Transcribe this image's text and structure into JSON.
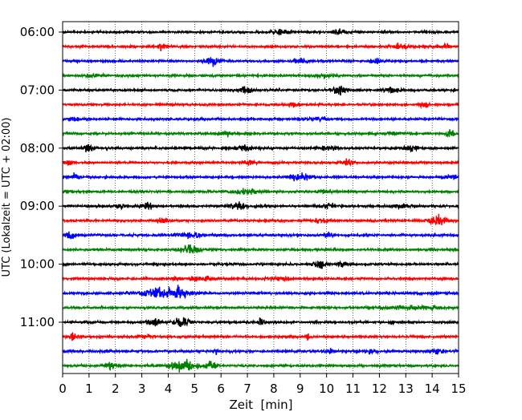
{
  "chart_data": {
    "type": "line",
    "title": "",
    "xlabel": "Zeit  [min]",
    "ylabel": "UTC (Lokalzeit = UTC + 02:00)",
    "xlim": [
      0,
      15
    ],
    "x_ticks": [
      0,
      1,
      2,
      3,
      4,
      5,
      6,
      7,
      8,
      9,
      10,
      11,
      12,
      13,
      14,
      15
    ],
    "y_tick_labels": [
      "06:00",
      "07:00",
      "08:00",
      "09:00",
      "10:00",
      "11:00"
    ],
    "y_tick_rows": [
      0,
      4,
      8,
      12,
      16,
      20
    ],
    "grid": "vertical dotted at each minute",
    "trace_colors": [
      "#000000",
      "#ff0000",
      "#0000ff",
      "#008000"
    ],
    "row_interval_min": 15,
    "series": [
      {
        "start": "06:00",
        "color": "#000000",
        "bursts": [
          [
            8.3,
            0.35,
            0.6
          ],
          [
            10.5,
            0.25,
            0.5
          ]
        ]
      },
      {
        "start": "06:15",
        "color": "#ff0000",
        "bursts": [
          [
            3.8,
            0.2,
            0.7
          ],
          [
            12.8,
            0.3,
            0.5
          ],
          [
            14.5,
            0.2,
            0.5
          ]
        ]
      },
      {
        "start": "06:30",
        "color": "#0000ff",
        "bursts": [
          [
            5.7,
            0.3,
            1.0
          ],
          [
            9.0,
            0.3,
            0.5
          ],
          [
            11.9,
            0.2,
            0.5
          ]
        ]
      },
      {
        "start": "06:45",
        "color": "#008000",
        "bursts": [
          [
            1.2,
            0.25,
            0.4
          ],
          [
            9.8,
            0.3,
            0.4
          ]
        ]
      },
      {
        "start": "07:00",
        "color": "#000000",
        "bursts": [
          [
            6.95,
            0.2,
            1.0
          ],
          [
            10.5,
            0.3,
            0.8
          ],
          [
            12.5,
            0.3,
            0.6
          ]
        ]
      },
      {
        "start": "07:15",
        "color": "#ff0000",
        "bursts": [
          [
            8.7,
            0.25,
            0.4
          ],
          [
            13.7,
            0.2,
            0.6
          ]
        ]
      },
      {
        "start": "07:30",
        "color": "#0000ff",
        "bursts": [
          [
            0.4,
            0.3,
            0.3
          ],
          [
            9.8,
            0.3,
            0.4
          ]
        ]
      },
      {
        "start": "07:45",
        "color": "#008000",
        "bursts": [
          [
            6.2,
            0.2,
            0.5
          ],
          [
            12.6,
            0.3,
            0.4
          ],
          [
            14.7,
            0.15,
            0.8
          ]
        ]
      },
      {
        "start": "08:00",
        "color": "#000000",
        "bursts": [
          [
            1.0,
            0.2,
            0.8
          ],
          [
            6.9,
            0.25,
            0.8
          ],
          [
            10.0,
            0.4,
            0.6
          ],
          [
            13.2,
            0.3,
            0.6
          ]
        ]
      },
      {
        "start": "08:15",
        "color": "#ff0000",
        "bursts": [
          [
            0.2,
            0.15,
            0.7
          ],
          [
            7.1,
            0.2,
            0.6
          ],
          [
            10.8,
            0.2,
            0.6
          ]
        ]
      },
      {
        "start": "08:30",
        "color": "#0000ff",
        "bursts": [
          [
            0.5,
            0.15,
            0.8
          ],
          [
            9.0,
            0.4,
            0.8
          ],
          [
            14.7,
            0.3,
            0.5
          ]
        ]
      },
      {
        "start": "08:45",
        "color": "#008000",
        "bursts": [
          [
            0.2,
            0.15,
            0.5
          ],
          [
            6.9,
            0.5,
            0.6
          ],
          [
            9.9,
            0.3,
            0.4
          ]
        ]
      },
      {
        "start": "09:00",
        "color": "#000000",
        "bursts": [
          [
            2.2,
            0.2,
            0.6
          ],
          [
            3.2,
            0.2,
            0.8
          ],
          [
            6.7,
            0.3,
            0.9
          ],
          [
            10.1,
            0.4,
            0.5
          ],
          [
            12.8,
            0.4,
            0.5
          ]
        ]
      },
      {
        "start": "09:15",
        "color": "#ff0000",
        "bursts": [
          [
            3.8,
            0.2,
            0.5
          ],
          [
            9.8,
            0.3,
            0.5
          ],
          [
            14.2,
            0.35,
            1.1
          ]
        ]
      },
      {
        "start": "09:30",
        "color": "#0000ff",
        "bursts": [
          [
            0.3,
            0.2,
            1.0
          ],
          [
            4.8,
            0.6,
            0.5
          ],
          [
            10.1,
            0.2,
            0.6
          ]
        ]
      },
      {
        "start": "09:45",
        "color": "#008000",
        "bursts": [
          [
            4.8,
            0.4,
            1.0
          ]
        ]
      },
      {
        "start": "10:00",
        "color": "#000000",
        "bursts": [
          [
            9.7,
            0.2,
            1.0
          ],
          [
            10.6,
            0.2,
            0.6
          ]
        ]
      },
      {
        "start": "10:15",
        "color": "#ff0000",
        "bursts": [
          [
            4.3,
            0.15,
            0.7
          ],
          [
            5.0,
            0.2,
            0.6
          ],
          [
            5.5,
            0.2,
            0.5
          ],
          [
            8.2,
            0.4,
            0.4
          ]
        ]
      },
      {
        "start": "10:30",
        "color": "#0000ff",
        "bursts": [
          [
            3.8,
            0.9,
            1.0
          ],
          [
            4.5,
            0.25,
            0.8
          ]
        ]
      },
      {
        "start": "10:45",
        "color": "#008000",
        "bursts": [
          [
            13.5,
            1.3,
            0.35
          ]
        ]
      },
      {
        "start": "11:00",
        "color": "#000000",
        "bursts": [
          [
            3.5,
            0.3,
            0.7
          ],
          [
            4.5,
            0.3,
            1.2
          ],
          [
            7.5,
            0.1,
            1.2
          ],
          [
            12.5,
            0.1,
            0.8
          ]
        ]
      },
      {
        "start": "11:15",
        "color": "#ff0000",
        "bursts": [
          [
            0.4,
            0.15,
            0.8
          ],
          [
            3.2,
            0.2,
            0.5
          ],
          [
            9.3,
            0.1,
            0.7
          ]
        ]
      },
      {
        "start": "11:30",
        "color": "#0000ff",
        "bursts": [
          [
            5.8,
            0.1,
            0.8
          ],
          [
            10.1,
            0.2,
            0.6
          ],
          [
            11.7,
            0.2,
            0.6
          ],
          [
            14.2,
            0.3,
            0.6
          ]
        ]
      },
      {
        "start": "11:45",
        "color": "#008000",
        "bursts": [
          [
            1.8,
            0.15,
            0.8
          ],
          [
            4.6,
            0.5,
            1.2
          ],
          [
            5.6,
            0.2,
            0.9
          ]
        ]
      }
    ]
  }
}
